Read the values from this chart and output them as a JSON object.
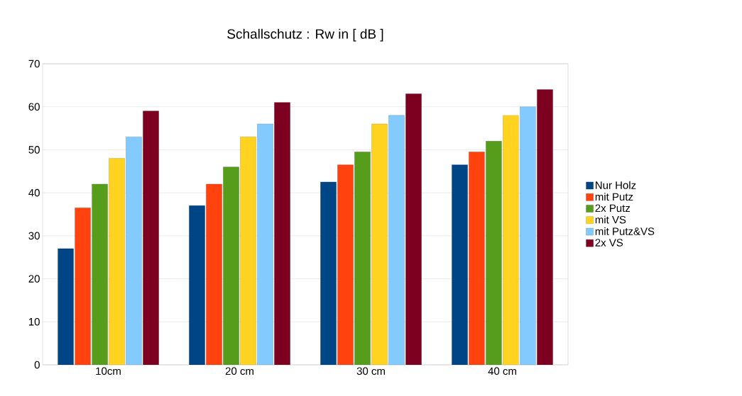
{
  "chart_data": {
    "type": "bar",
    "title": "Schallschutz : Rw in [ dB ]",
    "categories": [
      "10cm",
      "20 cm",
      "30 cm",
      "40 cm"
    ],
    "series": [
      {
        "name": "Nur Holz",
        "color": "#004586",
        "values": [
          27,
          37,
          42.5,
          46.5
        ]
      },
      {
        "name": "mit Putz",
        "color": "#ff420e",
        "values": [
          36.5,
          42,
          46.5,
          49.5
        ]
      },
      {
        "name": "2x Putz",
        "color": "#579d1c",
        "values": [
          42,
          46,
          49.5,
          52
        ]
      },
      {
        "name": "mit VS",
        "color": "#ffd320",
        "values": [
          48,
          53,
          56,
          58
        ]
      },
      {
        "name": "mit Putz&VS",
        "color": "#83caff",
        "values": [
          53,
          56,
          58,
          60
        ]
      },
      {
        "name": "2x VS",
        "color": "#7e0021",
        "values": [
          59,
          61,
          63,
          64
        ]
      }
    ],
    "ylim": [
      0,
      70
    ],
    "yticks": [
      0,
      10,
      20,
      30,
      40,
      50,
      60,
      70
    ],
    "grid": "y",
    "legend": "right"
  }
}
